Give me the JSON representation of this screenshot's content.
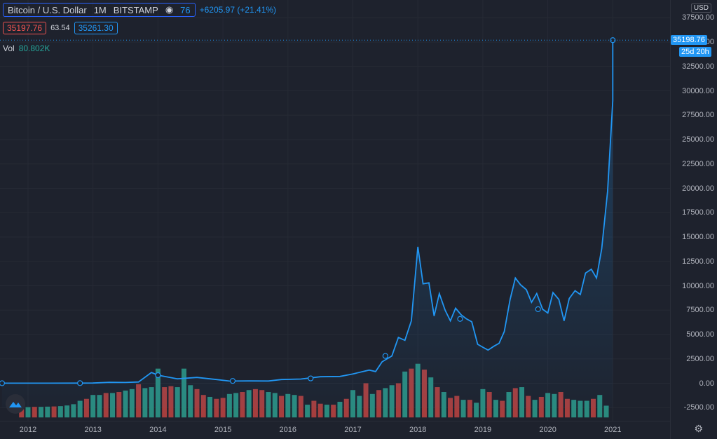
{
  "header": {
    "symbol": "Bitcoin / U.S. Dollar",
    "interval": "1M",
    "exchange": "BITSTAMP",
    "change_prefix": "76",
    "change": "+6205.97 (+21.41%)",
    "bid": "35197.76",
    "spread": "63.54",
    "ask": "35261.30",
    "vol_label": "Vol",
    "vol_value": "80.802K"
  },
  "right_axis": {
    "currency": "USD",
    "last_price": "35198.76",
    "countdown": "25d 20h",
    "ticks": [
      "37500.00",
      "35000.00",
      "32500.00",
      "30000.00",
      "27500.00",
      "25000.00",
      "22500.00",
      "20000.00",
      "17500.00",
      "15000.00",
      "12500.00",
      "10000.00",
      "7500.00",
      "5000.00",
      "2500.00",
      "0.00",
      "-2500.00"
    ]
  },
  "colors": {
    "line": "#2196f3",
    "up": "#26a69a",
    "down": "#ef5350",
    "bg": "#1e222d"
  },
  "chart_data": {
    "type": "line",
    "title": "Bitcoin / U.S. Dollar",
    "x_labels": [
      "2012",
      "2013",
      "2014",
      "2015",
      "2016",
      "2017",
      "2018",
      "2019",
      "2020",
      "2021"
    ],
    "ylim": [
      -2500,
      37500
    ],
    "scale": "linear",
    "series": [
      {
        "type": "line",
        "values": [
          [
            2011.6,
            5
          ],
          [
            2011.9,
            4
          ],
          [
            2012.3,
            5
          ],
          [
            2012.8,
            12
          ],
          [
            2013.0,
            20
          ],
          [
            2013.25,
            90
          ],
          [
            2013.5,
            80
          ],
          [
            2013.7,
            130
          ],
          [
            2013.9,
            1100
          ],
          [
            2014.0,
            830
          ],
          [
            2014.3,
            450
          ],
          [
            2014.6,
            600
          ],
          [
            2014.9,
            380
          ],
          [
            2015.1,
            220
          ],
          [
            2015.4,
            240
          ],
          [
            2015.7,
            230
          ],
          [
            2015.9,
            380
          ],
          [
            2016.2,
            430
          ],
          [
            2016.5,
            670
          ],
          [
            2016.8,
            700
          ],
          [
            2017.0,
            960
          ],
          [
            2017.25,
            1350
          ],
          [
            2017.35,
            1200
          ],
          [
            2017.45,
            2200
          ],
          [
            2017.6,
            2800
          ],
          [
            2017.7,
            4700
          ],
          [
            2017.8,
            4400
          ],
          [
            2017.9,
            6400
          ],
          [
            2018.0,
            14000
          ],
          [
            2018.08,
            10200
          ],
          [
            2018.17,
            10300
          ],
          [
            2018.25,
            6900
          ],
          [
            2018.33,
            9200
          ],
          [
            2018.42,
            7500
          ],
          [
            2018.5,
            6400
          ],
          [
            2018.58,
            7700
          ],
          [
            2018.67,
            7000
          ],
          [
            2018.75,
            6600
          ],
          [
            2018.83,
            6300
          ],
          [
            2018.92,
            4000
          ],
          [
            2019.0,
            3700
          ],
          [
            2019.08,
            3400
          ],
          [
            2019.17,
            3800
          ],
          [
            2019.25,
            4100
          ],
          [
            2019.33,
            5300
          ],
          [
            2019.42,
            8600
          ],
          [
            2019.5,
            10800
          ],
          [
            2019.58,
            10100
          ],
          [
            2019.67,
            9600
          ],
          [
            2019.75,
            8300
          ],
          [
            2019.83,
            9200
          ],
          [
            2019.92,
            7600
          ],
          [
            2020.0,
            7200
          ],
          [
            2020.08,
            9300
          ],
          [
            2020.17,
            8600
          ],
          [
            2020.25,
            6400
          ],
          [
            2020.33,
            8700
          ],
          [
            2020.42,
            9500
          ],
          [
            2020.5,
            9100
          ],
          [
            2020.58,
            11300
          ],
          [
            2020.67,
            11700
          ],
          [
            2020.75,
            10800
          ],
          [
            2020.83,
            13800
          ],
          [
            2020.92,
            19700
          ],
          [
            2021.0,
            29000
          ],
          [
            2021.0,
            35198.76
          ]
        ]
      },
      {
        "type": "volume",
        "scaled_values": [
          [
            2011.9,
            -2450,
            "down"
          ],
          [
            2012.0,
            -2450,
            "up"
          ],
          [
            2012.1,
            -2420,
            "down"
          ],
          [
            2012.2,
            -2420,
            "up"
          ],
          [
            2012.3,
            -2400,
            "up"
          ],
          [
            2012.4,
            -2380,
            "down"
          ],
          [
            2012.5,
            -2350,
            "up"
          ],
          [
            2012.6,
            -2280,
            "up"
          ],
          [
            2012.7,
            -2150,
            "up"
          ],
          [
            2012.8,
            -1800,
            "up"
          ],
          [
            2012.9,
            -1600,
            "down"
          ],
          [
            2013.0,
            -1200,
            "up"
          ],
          [
            2013.1,
            -1200,
            "up"
          ],
          [
            2013.2,
            -1000,
            "down"
          ],
          [
            2013.3,
            -1000,
            "up"
          ],
          [
            2013.4,
            -900,
            "down"
          ],
          [
            2013.5,
            -750,
            "up"
          ],
          [
            2013.6,
            -600,
            "up"
          ],
          [
            2013.7,
            -100,
            "down"
          ],
          [
            2013.8,
            -500,
            "up"
          ],
          [
            2013.9,
            -400,
            "up"
          ],
          [
            2014.0,
            1500,
            "up"
          ],
          [
            2014.1,
            -400,
            "down"
          ],
          [
            2014.2,
            -300,
            "down"
          ],
          [
            2014.3,
            -400,
            "up"
          ],
          [
            2014.4,
            1500,
            "up"
          ],
          [
            2014.5,
            -200,
            "up"
          ],
          [
            2014.6,
            -600,
            "down"
          ],
          [
            2014.7,
            -1200,
            "down"
          ],
          [
            2014.8,
            -1400,
            "up"
          ],
          [
            2014.9,
            -1600,
            "down"
          ],
          [
            2015.0,
            -1500,
            "down"
          ],
          [
            2015.1,
            -1100,
            "up"
          ],
          [
            2015.2,
            -1000,
            "up"
          ],
          [
            2015.3,
            -900,
            "down"
          ],
          [
            2015.4,
            -700,
            "up"
          ],
          [
            2015.5,
            -600,
            "down"
          ],
          [
            2015.6,
            -700,
            "down"
          ],
          [
            2015.7,
            -900,
            "up"
          ],
          [
            2015.8,
            -1000,
            "up"
          ],
          [
            2015.9,
            -1300,
            "down"
          ],
          [
            2016.0,
            -1100,
            "up"
          ],
          [
            2016.1,
            -1200,
            "up"
          ],
          [
            2016.2,
            -1300,
            "down"
          ],
          [
            2016.3,
            -2200,
            "up"
          ],
          [
            2016.4,
            -1800,
            "down"
          ],
          [
            2016.5,
            -2100,
            "down"
          ],
          [
            2016.6,
            -2200,
            "up"
          ],
          [
            2016.7,
            -2200,
            "down"
          ],
          [
            2016.8,
            -1900,
            "up"
          ],
          [
            2016.9,
            -1600,
            "down"
          ],
          [
            2017.0,
            -700,
            "up"
          ],
          [
            2017.1,
            -1300,
            "up"
          ],
          [
            2017.2,
            0,
            "down"
          ],
          [
            2017.3,
            -1100,
            "up"
          ],
          [
            2017.4,
            -700,
            "down"
          ],
          [
            2017.5,
            -500,
            "up"
          ],
          [
            2017.6,
            -200,
            "up"
          ],
          [
            2017.7,
            0,
            "down"
          ],
          [
            2017.8,
            1200,
            "up"
          ],
          [
            2017.9,
            1500,
            "down"
          ],
          [
            2018.0,
            2000,
            "up"
          ],
          [
            2018.1,
            1400,
            "down"
          ],
          [
            2018.2,
            600,
            "up"
          ],
          [
            2018.3,
            -400,
            "down"
          ],
          [
            2018.4,
            -900,
            "up"
          ],
          [
            2018.5,
            -1500,
            "down"
          ],
          [
            2018.6,
            -1300,
            "down"
          ],
          [
            2018.7,
            -1700,
            "up"
          ],
          [
            2018.8,
            -1700,
            "down"
          ],
          [
            2018.9,
            -2000,
            "up"
          ],
          [
            2019.0,
            -600,
            "up"
          ],
          [
            2019.1,
            -900,
            "down"
          ],
          [
            2019.2,
            -1700,
            "up"
          ],
          [
            2019.3,
            -1800,
            "down"
          ],
          [
            2019.4,
            -900,
            "up"
          ],
          [
            2019.5,
            -500,
            "down"
          ],
          [
            2019.6,
            -400,
            "up"
          ],
          [
            2019.7,
            -1300,
            "down"
          ],
          [
            2019.8,
            -1700,
            "up"
          ],
          [
            2019.9,
            -1400,
            "down"
          ],
          [
            2020.0,
            -1000,
            "up"
          ],
          [
            2020.1,
            -1100,
            "up"
          ],
          [
            2020.2,
            -900,
            "down"
          ],
          [
            2020.3,
            -1600,
            "down"
          ],
          [
            2020.4,
            -1700,
            "up"
          ],
          [
            2020.5,
            -1800,
            "up"
          ],
          [
            2020.6,
            -1800,
            "up"
          ],
          [
            2020.7,
            -1600,
            "down"
          ],
          [
            2020.8,
            -1200,
            "up"
          ],
          [
            2020.9,
            -2300,
            "up"
          ]
        ]
      }
    ]
  }
}
